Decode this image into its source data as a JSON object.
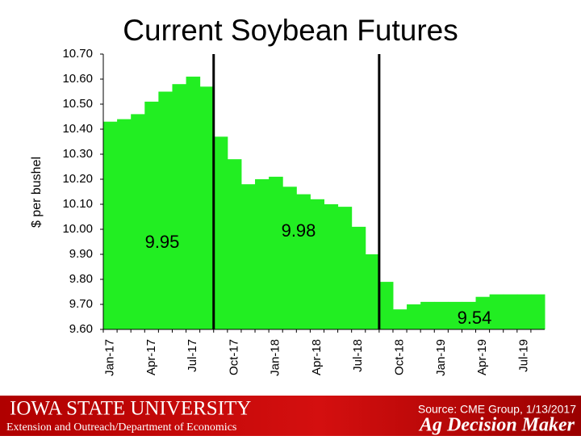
{
  "chart_data": {
    "type": "bar",
    "title": "Current Soybean Futures",
    "y_label": "$ per bushel",
    "categories": [
      "Jan-17",
      null,
      null,
      "Apr-17",
      null,
      null,
      "Jul-17",
      null,
      null,
      "Oct-17",
      null,
      null,
      "Jan-18",
      null,
      null,
      "Apr-18",
      null,
      null,
      "Jul-18",
      null,
      null,
      "Oct-18",
      null,
      null,
      "Jan-19",
      null,
      null,
      "Apr-19",
      null,
      null,
      "Jul-19",
      null
    ],
    "values": [
      10.43,
      10.44,
      10.46,
      10.51,
      10.55,
      10.58,
      10.61,
      10.57,
      10.37,
      10.28,
      10.18,
      10.2,
      10.21,
      10.17,
      10.14,
      10.12,
      10.1,
      10.09,
      10.01,
      9.9,
      9.79,
      9.68,
      9.7,
      9.71,
      9.71,
      9.71,
      9.71,
      9.73,
      9.74,
      9.74,
      9.74,
      9.74
    ],
    "color": "#22ee22",
    "ylim": [
      9.6,
      10.7
    ],
    "yticks": [
      {
        "value": 9.6,
        "label": "9.60"
      },
      {
        "value": 9.7,
        "label": "9.70"
      },
      {
        "value": 9.8,
        "label": "9.80"
      },
      {
        "value": 9.9,
        "label": "9.90"
      },
      {
        "value": 10.0,
        "label": "10.00"
      },
      {
        "value": 10.1,
        "label": "10.10"
      },
      {
        "value": 10.2,
        "label": "10.20"
      },
      {
        "value": 10.3,
        "label": "10.30"
      },
      {
        "value": 10.4,
        "label": "10.40"
      },
      {
        "value": 10.5,
        "label": "10.50"
      },
      {
        "value": 10.6,
        "label": "10.60"
      },
      {
        "value": 10.7,
        "label": "10.70"
      }
    ],
    "annotations": [
      "9.95",
      "9.98",
      "9.54"
    ]
  },
  "footer": {
    "university": "IOWA STATE UNIVERSITY",
    "department": "Extension and Outreach/Department of Economics",
    "source": "Source: CME Group, 1/13/2017",
    "brand": "Ag Decision Maker"
  }
}
